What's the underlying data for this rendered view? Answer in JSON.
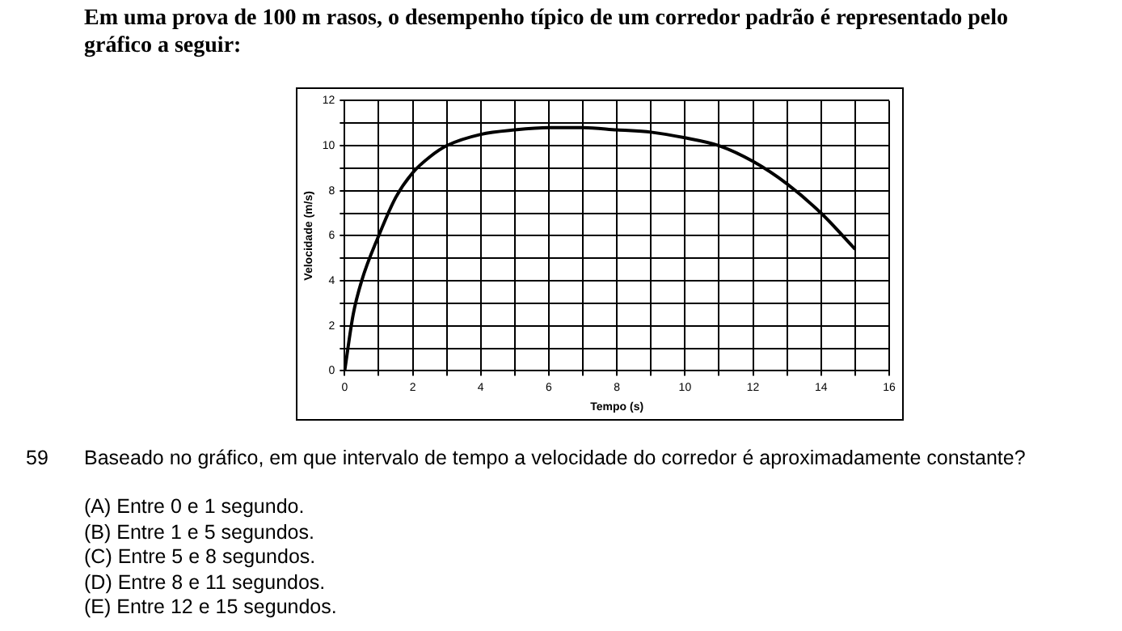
{
  "chart_data": {
    "type": "line",
    "title": "Em uma prova de 100 m rasos, o desempenho típico de um corredor padrão é representado pelo gráfico a seguir:",
    "xlabel": "Tempo (s)",
    "ylabel": "Velocidade (m/s)",
    "x": [
      0,
      0.25,
      0.5,
      1,
      1.5,
      2,
      2.5,
      3,
      4,
      5,
      6,
      7,
      8,
      9,
      10,
      11,
      12,
      13,
      14,
      15
    ],
    "series": [
      {
        "color": "#000000",
        "values": [
          0,
          2.5,
          4,
          6,
          7.7,
          8.8,
          9.5,
          10,
          10.5,
          10.7,
          10.8,
          10.8,
          10.7,
          10.6,
          10.35,
          10,
          9.3,
          8.3,
          7,
          5.4
        ]
      }
    ],
    "xlim": [
      0,
      16
    ],
    "xticks": [
      0,
      {
        "value": 1,
        "label": null
      },
      2,
      {
        "value": 3,
        "label": null
      },
      4,
      {
        "value": 5,
        "label": null
      },
      6,
      {
        "value": 7,
        "label": null
      },
      8,
      {
        "value": 9,
        "label": null
      },
      10,
      {
        "value": 11,
        "label": null
      },
      12,
      {
        "value": 13,
        "label": null
      },
      14,
      {
        "value": 15,
        "label": null
      },
      16
    ],
    "ylim": [
      0,
      12
    ],
    "yticks": [
      0,
      {
        "value": 1,
        "label": null
      },
      2,
      {
        "value": 3,
        "label": null
      },
      4,
      {
        "value": 5,
        "label": null
      },
      6,
      {
        "value": 7,
        "label": null
      },
      8,
      {
        "value": 9,
        "label": null
      },
      10,
      {
        "value": 11,
        "label": null
      },
      12
    ],
    "grid": true,
    "legend": false,
    "marker": "none",
    "line_style": "solid",
    "annotations": [
      "59",
      "Baseado no gráfico, em que intervalo de tempo a velocidade do corredor é aproximadamente constante?",
      "(A)  Entre 0 e 1 segundo.",
      "(B)  Entre 1 e 5 segundos.",
      "(C)  Entre 5 e 8 segundos.",
      "(D)  Entre 8 e 11 segundos.",
      "(E)  Entre 12 e 15 segundos."
    ]
  }
}
